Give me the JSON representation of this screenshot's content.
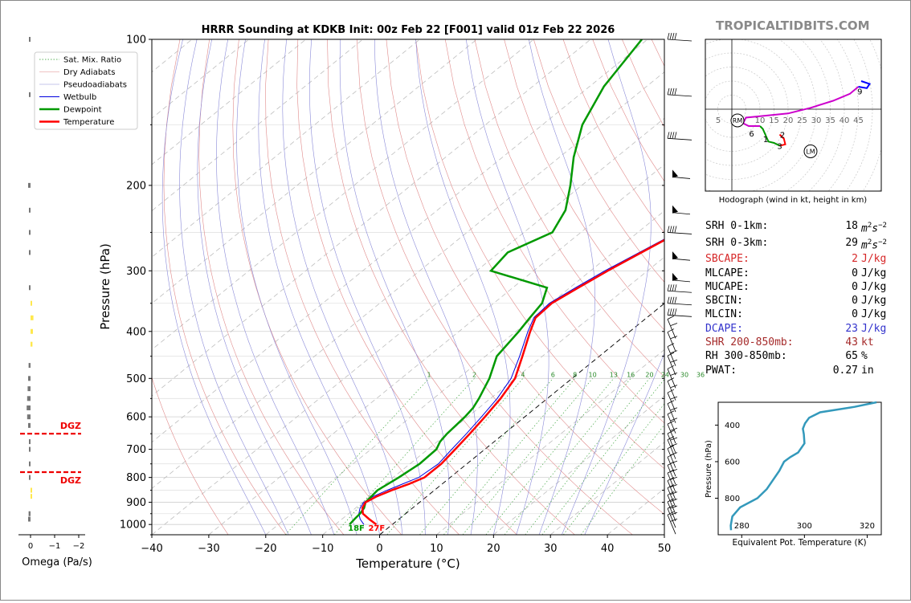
{
  "title": "HRRR Sounding at KDKB Init: 00z Feb 22 [F001] valid 01z Feb 22 2026",
  "brand": "TROPICALTIDBITS.COM",
  "colors": {
    "temperature": "#ff0000",
    "dewpoint": "#009900",
    "wetbulb": "#0000dd",
    "hodo": "#cc00cc",
    "theta_e": "#3399bb"
  },
  "chart_data": [
    {
      "type": "skewt",
      "name": "skewt",
      "xlabel": "Temperature (°C)",
      "ylabel": "Pressure (hPa)",
      "xlim": [
        -40,
        50
      ],
      "ylim": [
        1050,
        100
      ],
      "x_ticks": [
        -40,
        -30,
        -20,
        -10,
        0,
        10,
        20,
        30,
        40,
        50
      ],
      "y_ticks": [
        100,
        200,
        300,
        400,
        500,
        600,
        700,
        800,
        900,
        1000
      ],
      "legend": [
        "Sat. Mix. Ratio",
        "Dry Adiabats",
        "Pseudoadiabats",
        "Wetbulb",
        "Dewpoint",
        "Temperature"
      ],
      "legend_position": "top-left",
      "mixing_ratio_labels": [
        "1",
        "2",
        "4",
        "6",
        "8",
        "10",
        "13",
        "16",
        "20",
        "24",
        "30",
        "36"
      ],
      "surface_temp_label": "27F",
      "surface_dewpoint_label": "18F",
      "temperature": [
        [
          1000,
          -2.8
        ],
        [
          975,
          -5.2
        ],
        [
          950,
          -7.5
        ],
        [
          925,
          -8.8
        ],
        [
          900,
          -9.5
        ],
        [
          875,
          -8.8
        ],
        [
          850,
          -7.5
        ],
        [
          825,
          -5.8
        ],
        [
          800,
          -4.5
        ],
        [
          750,
          -4.5
        ],
        [
          700,
          -5.2
        ],
        [
          650,
          -6.0
        ],
        [
          600,
          -7.0
        ],
        [
          550,
          -8.2
        ],
        [
          500,
          -10.0
        ],
        [
          450,
          -13.5
        ],
        [
          400,
          -17.5
        ],
        [
          375,
          -19.5
        ],
        [
          350,
          -19.8
        ],
        [
          325,
          -18.5
        ],
        [
          300,
          -17.0
        ],
        [
          275,
          -15.0
        ],
        [
          250,
          -12.8
        ],
        [
          225,
          -11.5
        ],
        [
          200,
          -10.0
        ],
        [
          175,
          -8.7
        ],
        [
          150,
          -9.3
        ],
        [
          125,
          -8.5
        ],
        [
          100,
          -9.5
        ]
      ],
      "dewpoint": [
        [
          1000,
          -7.5
        ],
        [
          975,
          -7.8
        ],
        [
          950,
          -8.0
        ],
        [
          925,
          -8.5
        ],
        [
          900,
          -9.5
        ],
        [
          850,
          -10.0
        ],
        [
          800,
          -9.0
        ],
        [
          750,
          -8.3
        ],
        [
          700,
          -8.5
        ],
        [
          675,
          -9.5
        ],
        [
          650,
          -10.0
        ],
        [
          600,
          -10.5
        ],
        [
          575,
          -11.0
        ],
        [
          550,
          -12.0
        ],
        [
          500,
          -14.5
        ],
        [
          450,
          -18.0
        ],
        [
          400,
          -19.5
        ],
        [
          375,
          -20.5
        ],
        [
          350,
          -21.5
        ],
        [
          325,
          -24.0
        ],
        [
          300,
          -37.5
        ],
        [
          275,
          -38.5
        ],
        [
          250,
          -35.0
        ],
        [
          225,
          -37.5
        ],
        [
          200,
          -42.0
        ],
        [
          175,
          -47.5
        ],
        [
          150,
          -53.0
        ],
        [
          125,
          -57.5
        ],
        [
          100,
          -61.0
        ]
      ],
      "wetbulb": [
        [
          1000,
          -5.0
        ],
        [
          975,
          -6.8
        ],
        [
          950,
          -8.2
        ],
        [
          925,
          -9.2
        ],
        [
          900,
          -9.8
        ],
        [
          875,
          -9.4
        ],
        [
          850,
          -8.3
        ],
        [
          800,
          -5.5
        ],
        [
          750,
          -5.0
        ],
        [
          700,
          -5.8
        ],
        [
          650,
          -6.6
        ],
        [
          600,
          -7.6
        ],
        [
          550,
          -8.8
        ],
        [
          500,
          -10.7
        ],
        [
          450,
          -14.0
        ],
        [
          400,
          -17.9
        ],
        [
          375,
          -19.8
        ],
        [
          350,
          -20.2
        ],
        [
          325,
          -19.0
        ],
        [
          300,
          -17.5
        ],
        [
          275,
          -15.4
        ],
        [
          250,
          -13.1
        ],
        [
          225,
          -11.8
        ],
        [
          200,
          -10.2
        ],
        [
          175,
          -8.8
        ],
        [
          150,
          -9.4
        ],
        [
          125,
          -8.6
        ],
        [
          100,
          -9.6
        ]
      ]
    },
    {
      "type": "bar",
      "name": "omega",
      "xlabel": "Omega (Pa/s)",
      "x_ticks": [
        "0",
        "−1",
        "−2"
      ],
      "dgz_label": "DGZ",
      "dgz_levels_hpa": [
        650,
        780
      ],
      "values": [
        [
          100,
          0.02
        ],
        [
          130,
          0.02
        ],
        [
          200,
          0.05
        ],
        [
          225,
          0.03
        ],
        [
          250,
          0.03
        ],
        [
          275,
          0.03
        ],
        [
          325,
          0.02
        ],
        [
          350,
          -0.03
        ],
        [
          375,
          -0.06
        ],
        [
          400,
          -0.05
        ],
        [
          425,
          -0.04
        ],
        [
          470,
          0.04
        ],
        [
          500,
          0.05
        ],
        [
          525,
          0.06
        ],
        [
          550,
          0.07
        ],
        [
          575,
          0.08
        ],
        [
          600,
          0.07
        ],
        [
          625,
          0.05
        ],
        [
          675,
          0.03
        ],
        [
          700,
          0.02
        ],
        [
          750,
          0.02
        ],
        [
          800,
          0.02
        ],
        [
          850,
          -0.02
        ],
        [
          875,
          -0.03
        ],
        [
          950,
          0.04
        ],
        [
          975,
          0.05
        ]
      ]
    },
    {
      "type": "line",
      "name": "hodograph",
      "caption": "Hodograph (wind in kt, height in km)",
      "ring_labels": [
        "5",
        "10",
        "15",
        "20",
        "25",
        "30",
        "35",
        "40",
        "45"
      ],
      "rm_label": "RM",
      "lm_label": "LM",
      "height_labels": [
        "1",
        "2",
        "3",
        "6",
        "9"
      ],
      "rm": [
        2,
        -4
      ],
      "lm": [
        28,
        -15
      ],
      "segments": [
        {
          "color": "#ff0000",
          "points": [
            [
              17,
              -9
            ],
            [
              18.5,
              -10.5
            ],
            [
              19,
              -12.5
            ],
            [
              17,
              -13
            ]
          ]
        },
        {
          "color": "#009900",
          "points": [
            [
              17,
              -13
            ],
            [
              15,
              -12
            ],
            [
              13,
              -11.5
            ],
            [
              11,
              -7
            ],
            [
              10,
              -6
            ]
          ]
        },
        {
          "color": "#cc00cc",
          "points": [
            [
              10,
              -6
            ],
            [
              6,
              -6
            ],
            [
              4,
              -5
            ],
            [
              5,
              -3
            ],
            [
              10,
              -2.5
            ],
            [
              20,
              -1.5
            ],
            [
              28,
              0.5
            ],
            [
              36,
              3
            ],
            [
              42,
              5.5
            ],
            [
              45,
              8
            ]
          ]
        },
        {
          "color": "#0000ff",
          "points": [
            [
              45,
              8
            ],
            [
              48,
              7.5
            ],
            [
              49,
              9
            ],
            [
              46,
              10
            ]
          ]
        }
      ],
      "height_label_points": [
        [
          12,
          -10.5
        ],
        [
          18,
          -9
        ],
        [
          17,
          -13
        ],
        [
          7,
          -8.5
        ],
        [
          45.5,
          6.5
        ]
      ]
    },
    {
      "type": "line",
      "name": "theta-e",
      "xlabel": "Equivalent Pot. Temperature (K)",
      "ylabel": "Pressure (hPa)",
      "x_ticks": [
        280,
        300,
        320
      ],
      "y_ticks": [
        400,
        600,
        800
      ],
      "values": [
        [
          975,
          276.6
        ],
        [
          950,
          276.5
        ],
        [
          900,
          277.0
        ],
        [
          850,
          279.5
        ],
        [
          800,
          285.0
        ],
        [
          750,
          288.0
        ],
        [
          700,
          290.0
        ],
        [
          650,
          292.0
        ],
        [
          600,
          293.5
        ],
        [
          575,
          295.5
        ],
        [
          550,
          298.0
        ],
        [
          500,
          300.0
        ],
        [
          450,
          299.8
        ],
        [
          420,
          299.5
        ],
        [
          390,
          300.2
        ],
        [
          360,
          301.5
        ],
        [
          330,
          305.0
        ],
        [
          300,
          316.0
        ],
        [
          275,
          323.0
        ]
      ]
    }
  ],
  "stats": [
    {
      "label": "SRH 0-1km:",
      "value": "18",
      "unit": "m2s-2",
      "color": "#000000"
    },
    {
      "label": "SRH 0-3km:",
      "value": "29",
      "unit": "m2s-2",
      "color": "#000000"
    },
    {
      "label": "SBCAPE:",
      "value": "2",
      "unit": "J/kg",
      "color": "#d62728"
    },
    {
      "label": "MLCAPE:",
      "value": "0",
      "unit": "J/kg",
      "color": "#000000"
    },
    {
      "label": "MUCAPE:",
      "value": "0",
      "unit": "J/kg",
      "color": "#000000"
    },
    {
      "label": "SBCIN:",
      "value": "0",
      "unit": "J/kg",
      "color": "#000000"
    },
    {
      "label": "MLCIN:",
      "value": "0",
      "unit": "J/kg",
      "color": "#000000"
    },
    {
      "label": "DCAPE:",
      "value": "23",
      "unit": "J/kg",
      "color": "#3333cc"
    },
    {
      "label": "SHR 200-850mb:",
      "value": "43",
      "unit": "kt",
      "color": "#a52a2a"
    },
    {
      "label": "RH 300-850mb:",
      "value": "65",
      "unit": "%",
      "color": "#000000"
    },
    {
      "label": "PWAT:",
      "value": "0.27",
      "unit": "in",
      "color": "#000000"
    }
  ]
}
